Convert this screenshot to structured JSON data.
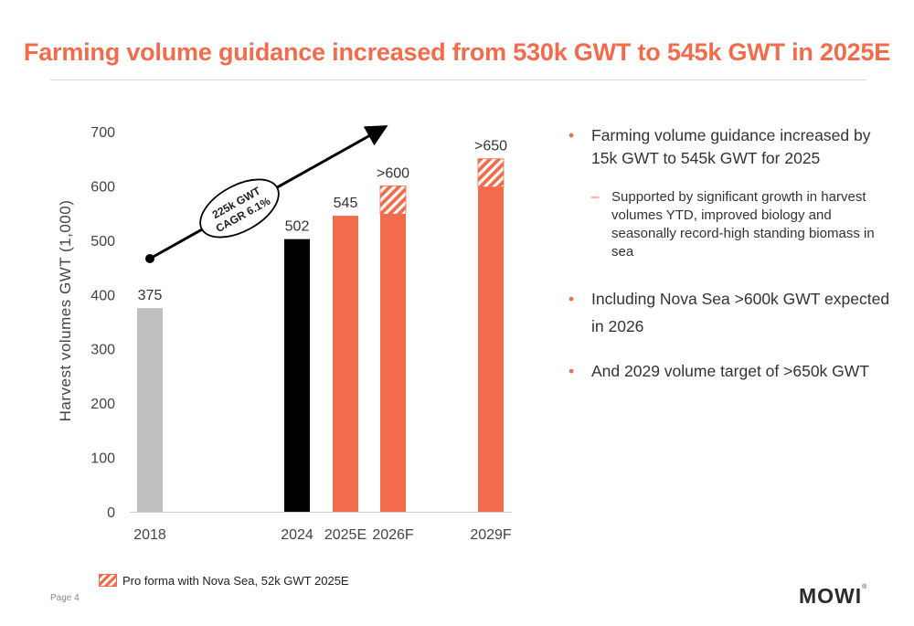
{
  "title": "Farming volume guidance increased from 530k GWT to 545k GWT in 2025E",
  "page_label": "Page 4",
  "logo": "MOWI",
  "chart_data": {
    "type": "bar",
    "categories": [
      "2018",
      "2024",
      "2025E",
      "2026F",
      "2029F"
    ],
    "values": [
      375,
      502,
      545,
      600,
      650
    ],
    "base_values": [
      375,
      502,
      545,
      548,
      598
    ],
    "pro_forma_values": [
      0,
      0,
      0,
      52,
      52
    ],
    "value_labels": [
      "375",
      "502",
      "545",
      ">600",
      ">650"
    ],
    "bar_colors": [
      "#bfbfbf",
      "#000000",
      "#f26b4b",
      "#f26b4b",
      "#f26b4b"
    ],
    "ylabel": "Harvest volumes GWT (1,000)",
    "ylim": [
      0,
      700
    ],
    "yticks": [
      0,
      100,
      200,
      300,
      400,
      500,
      600,
      700
    ],
    "grid": false,
    "annotation": {
      "line1": "225k GWT",
      "line2": "CAGR 6.1%"
    },
    "legend": {
      "label": "Pro forma with Nova Sea, 52k GWT 2025E",
      "placement": "bottom-left"
    }
  },
  "bullets": [
    {
      "text": "Farming volume guidance increased by 15k GWT to 545k GWT for 2025",
      "sub": [
        "Supported by significant growth in harvest volumes YTD, improved biology and seasonally record-high standing biomass in sea"
      ]
    },
    {
      "text": "Including Nova Sea >600k GWT expected in 2026",
      "sub": []
    },
    {
      "text": "And 2029 volume target of >650k GWT",
      "sub": []
    }
  ]
}
